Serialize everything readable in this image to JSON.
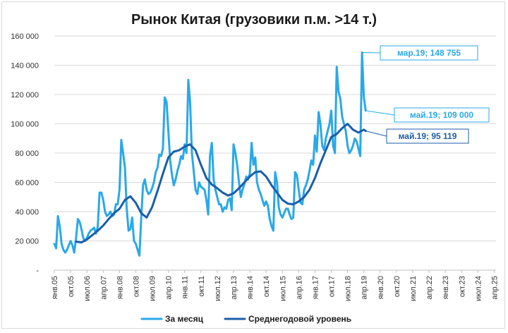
{
  "chart_data": {
    "type": "line",
    "title": "Рынок Китая (грузовики п.м. >14 т.)",
    "xlabel": "",
    "ylabel": "",
    "ylim": [
      0,
      160000
    ],
    "y_ticks": [
      "-",
      "20 000",
      "40 000",
      "60 000",
      "80 000",
      "100 000",
      "120 000",
      "140 000",
      "160 000"
    ],
    "x_tick_labels": [
      "янв.05",
      "окт.05",
      "июл.06",
      "апр.07",
      "янв.08",
      "окт.08",
      "июл.09",
      "апр.10",
      "янв.11",
      "окт.11",
      "июл.12",
      "апр.13",
      "янв.14",
      "окт.14",
      "июл.15",
      "апр.16",
      "янв.17",
      "окт.17",
      "июл.18",
      "апр.19",
      "янв.20",
      "окт.20",
      "июл.21",
      "апр.22",
      "янв.23",
      "окт.23",
      "июл.24",
      "апр.25"
    ],
    "x_range": [
      "янв.05",
      "май.25"
    ],
    "grid": true,
    "legend_position": "bottom",
    "colors": {
      "monthly": "#2aa8e8",
      "average": "#1a5ea8"
    },
    "series": [
      {
        "name": "За месяц",
        "points": [
          [
            "янв.05",
            18000
          ],
          [
            "фев.05",
            15000
          ],
          [
            "мар.05",
            37000
          ],
          [
            "апр.05",
            30000
          ],
          [
            "май.05",
            18000
          ],
          [
            "июн.05",
            14000
          ],
          [
            "июл.05",
            12000
          ],
          [
            "авг.05",
            14000
          ],
          [
            "сен.05",
            17000
          ],
          [
            "окт.05",
            20000
          ],
          [
            "ноя.05",
            17000
          ],
          [
            "дек.05",
            12000
          ],
          [
            "янв.06",
            22000
          ],
          [
            "фев.06",
            35000
          ],
          [
            "мар.06",
            33000
          ],
          [
            "апр.06",
            28000
          ],
          [
            "май.06",
            22000
          ],
          [
            "июн.06",
            20000
          ],
          [
            "июл.06",
            22000
          ],
          [
            "авг.06",
            25000
          ],
          [
            "сен.06",
            27000
          ],
          [
            "окт.06",
            28000
          ],
          [
            "ноя.06",
            29000
          ],
          [
            "дек.06",
            25000
          ],
          [
            "янв.07",
            30000
          ],
          [
            "фев.07",
            53000
          ],
          [
            "мар.07",
            53000
          ],
          [
            "апр.07",
            48000
          ],
          [
            "май.07",
            40000
          ],
          [
            "июн.07",
            37000
          ],
          [
            "июл.07",
            38000
          ],
          [
            "авг.07",
            40000
          ],
          [
            "сен.07",
            37000
          ],
          [
            "окт.07",
            38000
          ],
          [
            "ноя.07",
            45000
          ],
          [
            "дек.07",
            45000
          ],
          [
            "янв.08",
            55000
          ],
          [
            "фев.08",
            89000
          ],
          [
            "мар.08",
            80000
          ],
          [
            "апр.08",
            70000
          ],
          [
            "май.08",
            42000
          ],
          [
            "июн.08",
            27000
          ],
          [
            "июл.08",
            28000
          ],
          [
            "авг.08",
            36000
          ],
          [
            "сен.08",
            20000
          ],
          [
            "окт.08",
            18000
          ],
          [
            "ноя.08",
            14000
          ],
          [
            "дек.08",
            10000
          ],
          [
            "янв.09",
            35000
          ],
          [
            "фев.09",
            58000
          ],
          [
            "мар.09",
            62000
          ],
          [
            "апр.09",
            55000
          ],
          [
            "май.09",
            52000
          ],
          [
            "июн.09",
            53000
          ],
          [
            "июл.09",
            56000
          ],
          [
            "авг.09",
            60000
          ],
          [
            "сен.09",
            67000
          ],
          [
            "окт.09",
            70000
          ],
          [
            "ноя.09",
            79000
          ],
          [
            "дек.09",
            78000
          ],
          [
            "янв.10",
            83000
          ],
          [
            "фев.10",
            118000
          ],
          [
            "мар.10",
            115000
          ],
          [
            "апр.10",
            95000
          ],
          [
            "май.10",
            75000
          ],
          [
            "июн.10",
            65000
          ],
          [
            "июл.10",
            58000
          ],
          [
            "авг.10",
            62000
          ],
          [
            "сен.10",
            68000
          ],
          [
            "окт.10",
            72000
          ],
          [
            "ноя.10",
            78000
          ],
          [
            "дек.10",
            76000
          ],
          [
            "янв.11",
            86000
          ],
          [
            "фев.11",
            80000
          ],
          [
            "мар.11",
            130000
          ],
          [
            "апр.11",
            115000
          ],
          [
            "май.11",
            80000
          ],
          [
            "июн.11",
            68000
          ],
          [
            "июл.11",
            55000
          ],
          [
            "авг.11",
            52000
          ],
          [
            "сен.11",
            60000
          ],
          [
            "окт.11",
            57000
          ],
          [
            "ноя.11",
            56000
          ],
          [
            "дек.11",
            55000
          ],
          [
            "янв.12",
            48000
          ],
          [
            "фев.12",
            38000
          ],
          [
            "мар.12",
            78000
          ],
          [
            "апр.12",
            87000
          ],
          [
            "май.12",
            62000
          ],
          [
            "июн.12",
            55000
          ],
          [
            "июл.12",
            50000
          ],
          [
            "авг.12",
            45000
          ],
          [
            "сен.12",
            45000
          ],
          [
            "окт.12",
            40000
          ],
          [
            "ноя.12",
            43000
          ],
          [
            "дек.12",
            42000
          ],
          [
            "янв.13",
            48000
          ],
          [
            "фев.13",
            49000
          ],
          [
            "мар.13",
            41000
          ],
          [
            "апр.13",
            86000
          ],
          [
            "май.13",
            80000
          ],
          [
            "июн.13",
            72000
          ],
          [
            "июл.13",
            60000
          ],
          [
            "авг.13",
            50000
          ],
          [
            "сен.13",
            55000
          ],
          [
            "окт.13",
            59000
          ],
          [
            "ноя.13",
            64000
          ],
          [
            "дек.13",
            62000
          ],
          [
            "янв.14",
            66000
          ],
          [
            "фев.14",
            87000
          ],
          [
            "мар.14",
            72000
          ],
          [
            "апр.14",
            77000
          ],
          [
            "май.14",
            60000
          ],
          [
            "июн.14",
            55000
          ],
          [
            "июл.14",
            52000
          ],
          [
            "авг.14",
            48000
          ],
          [
            "сен.14",
            44000
          ],
          [
            "окт.14",
            47000
          ],
          [
            "ноя.14",
            44000
          ],
          [
            "дек.14",
            35000
          ],
          [
            "янв.15",
            30000
          ],
          [
            "фев.15",
            27000
          ],
          [
            "мар.15",
            67000
          ],
          [
            "апр.15",
            60000
          ],
          [
            "май.15",
            43000
          ],
          [
            "июн.15",
            38000
          ],
          [
            "июл.15",
            36000
          ],
          [
            "авг.15",
            39000
          ],
          [
            "сен.15",
            42000
          ],
          [
            "окт.15",
            42000
          ],
          [
            "ноя.15",
            38000
          ],
          [
            "дек.15",
            35000
          ],
          [
            "янв.16",
            36000
          ],
          [
            "фев.16",
            67000
          ],
          [
            "мар.16",
            65000
          ],
          [
            "апр.16",
            55000
          ],
          [
            "май.16",
            46000
          ],
          [
            "июн.16",
            45000
          ],
          [
            "июл.16",
            55000
          ],
          [
            "авг.16",
            58000
          ],
          [
            "сен.16",
            62000
          ],
          [
            "окт.16",
            68000
          ],
          [
            "ноя.16",
            75000
          ],
          [
            "дек.16",
            72000
          ],
          [
            "янв.17",
            92000
          ],
          [
            "фев.17",
            81000
          ],
          [
            "мар.17",
            108000
          ],
          [
            "апр.17",
            100000
          ],
          [
            "май.17",
            85000
          ],
          [
            "июн.17",
            82000
          ],
          [
            "июл.17",
            90000
          ],
          [
            "авг.17",
            95000
          ],
          [
            "сен.17",
            100000
          ],
          [
            "окт.17",
            109000
          ],
          [
            "ноя.17",
            85000
          ],
          [
            "дек.17",
            80000
          ],
          [
            "янв.18",
            139000
          ],
          [
            "фев.18",
            122000
          ],
          [
            "мар.18",
            117000
          ],
          [
            "апр.18",
            105000
          ],
          [
            "май.18",
            100000
          ],
          [
            "июн.18",
            95000
          ],
          [
            "июл.18",
            85000
          ],
          [
            "авг.18",
            80000
          ],
          [
            "сен.18",
            82000
          ],
          [
            "окт.18",
            85000
          ],
          [
            "ноя.18",
            90000
          ],
          [
            "дек.18",
            88000
          ],
          [
            "янв.19",
            83000
          ],
          [
            "фев.19",
            78000
          ],
          [
            "мар.19",
            148755
          ],
          [
            "апр.19",
            118000
          ],
          [
            "май.19",
            109000
          ]
        ]
      },
      {
        "name": "Среднегодовой уровень",
        "points": [
          [
            "янв.06",
            19500
          ],
          [
            "апр.06",
            19000
          ],
          [
            "июл.06",
            21000
          ],
          [
            "окт.06",
            24000
          ],
          [
            "янв.07",
            27000
          ],
          [
            "апр.07",
            30500
          ],
          [
            "июл.07",
            35000
          ],
          [
            "окт.07",
            39000
          ],
          [
            "янв.08",
            42000
          ],
          [
            "апр.08",
            48000
          ],
          [
            "июл.08",
            50500
          ],
          [
            "окт.08",
            46000
          ],
          [
            "янв.09",
            39000
          ],
          [
            "апр.09",
            36000
          ],
          [
            "июл.09",
            43000
          ],
          [
            "окт.09",
            54000
          ],
          [
            "янв.10",
            66000
          ],
          [
            "апр.10",
            77000
          ],
          [
            "июл.10",
            81000
          ],
          [
            "окт.10",
            82000
          ],
          [
            "янв.11",
            84500
          ],
          [
            "апр.11",
            86000
          ],
          [
            "июл.11",
            82000
          ],
          [
            "окт.11",
            72000
          ],
          [
            "янв.12",
            63000
          ],
          [
            "апр.12",
            58500
          ],
          [
            "июл.12",
            56000
          ],
          [
            "окт.12",
            53000
          ],
          [
            "янв.13",
            51000
          ],
          [
            "апр.13",
            52500
          ],
          [
            "июл.13",
            56000
          ],
          [
            "окт.13",
            60000
          ],
          [
            "янв.14",
            64000
          ],
          [
            "апр.14",
            67000
          ],
          [
            "июл.14",
            67500
          ],
          [
            "окт.14",
            64000
          ],
          [
            "янв.15",
            58000
          ],
          [
            "апр.15",
            53000
          ],
          [
            "июл.15",
            48000
          ],
          [
            "окт.15",
            45500
          ],
          [
            "янв.16",
            45000
          ],
          [
            "апр.16",
            47000
          ],
          [
            "июл.16",
            50000
          ],
          [
            "окт.16",
            55000
          ],
          [
            "янв.17",
            63000
          ],
          [
            "апр.17",
            73000
          ],
          [
            "июл.17",
            82000
          ],
          [
            "окт.17",
            91000
          ],
          [
            "янв.18",
            93000
          ],
          [
            "апр.18",
            97000
          ],
          [
            "июл.18",
            100000
          ],
          [
            "окт.18",
            96000
          ],
          [
            "янв.19",
            94000
          ],
          [
            "апр.19",
            96000
          ],
          [
            "май.19",
            95119
          ]
        ]
      }
    ],
    "annotations": [
      {
        "label": "мар.19; 148 755",
        "at": "мар.19",
        "value": 148755,
        "series": "За месяц"
      },
      {
        "label": "май.19; 109 000",
        "at": "май.19",
        "value": 109000,
        "series": "За месяц"
      },
      {
        "label": "май.19; 95 119",
        "at": "май.19",
        "value": 95119,
        "series": "Среднегодовой уровень"
      }
    ]
  }
}
